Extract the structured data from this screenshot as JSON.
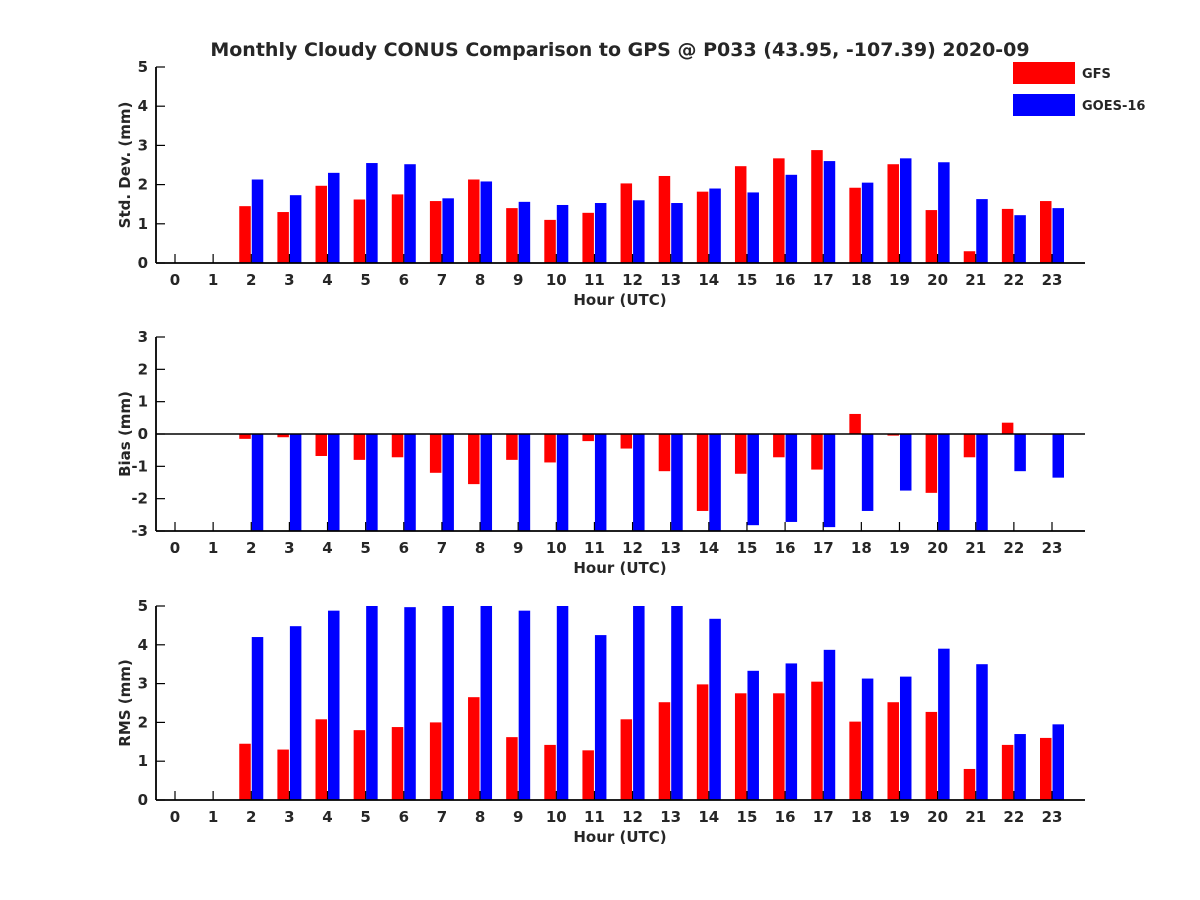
{
  "chart_data": {
    "type": "bar",
    "title": "Monthly Cloudy CONUS Comparison to GPS @ P033 (43.95, -107.39) 2020-09",
    "legend": {
      "placement": "top-right",
      "entries": [
        {
          "name": "GFS",
          "color": "#ff0000"
        },
        {
          "name": "GOES-16",
          "color": "#0000ff"
        }
      ]
    },
    "categories": [
      "0",
      "1",
      "2",
      "3",
      "4",
      "5",
      "6",
      "7",
      "8",
      "9",
      "10",
      "11",
      "12",
      "13",
      "14",
      "15",
      "16",
      "17",
      "18",
      "19",
      "20",
      "21",
      "22",
      "23"
    ],
    "panels": [
      {
        "id": "std",
        "ylabel": "Std. Dev. (mm)",
        "xlabel": "Hour (UTC)",
        "ylim": [
          0,
          5
        ],
        "yticks": [
          "0",
          "1",
          "2",
          "3",
          "4",
          "5"
        ],
        "series": [
          {
            "name": "GFS",
            "values": [
              null,
              null,
              1.45,
              1.3,
              1.97,
              1.62,
              1.75,
              1.58,
              2.13,
              1.4,
              1.1,
              1.28,
              2.03,
              2.22,
              1.82,
              2.47,
              2.67,
              2.88,
              1.92,
              2.52,
              1.35,
              0.3,
              1.38,
              1.58
            ]
          },
          {
            "name": "GOES-16",
            "values": [
              null,
              null,
              2.13,
              1.73,
              2.3,
              2.55,
              2.52,
              1.65,
              2.08,
              1.56,
              1.48,
              1.53,
              1.6,
              1.53,
              1.9,
              1.8,
              2.25,
              2.6,
              2.05,
              2.67,
              2.57,
              1.63,
              1.22,
              1.4
            ]
          }
        ]
      },
      {
        "id": "bias",
        "ylabel": "Bias (mm)",
        "xlabel": "Hour (UTC)",
        "ylim": [
          -3,
          3
        ],
        "yticks": [
          "-3",
          "-2",
          "-1",
          "0",
          "1",
          "2",
          "3"
        ],
        "series": [
          {
            "name": "GFS",
            "values": [
              null,
              null,
              -0.15,
              -0.1,
              -0.68,
              -0.8,
              -0.72,
              -1.2,
              -1.55,
              -0.8,
              -0.88,
              -0.22,
              -0.45,
              -1.15,
              -2.38,
              -1.23,
              -0.72,
              -1.1,
              0.62,
              -0.05,
              -1.82,
              -0.72,
              0.35,
              0.0
            ]
          },
          {
            "name": "GOES-16",
            "values": [
              null,
              null,
              -3.0,
              -3.0,
              -3.0,
              -3.0,
              -3.0,
              -3.0,
              -3.0,
              -3.0,
              -3.0,
              -3.0,
              -3.0,
              -3.0,
              -3.0,
              -2.82,
              -2.72,
              -2.88,
              -2.38,
              -1.75,
              -2.98,
              -3.0,
              -1.15,
              -1.35
            ]
          }
        ]
      },
      {
        "id": "rms",
        "ylabel": "RMS (mm)",
        "xlabel": "Hour (UTC)",
        "ylim": [
          0,
          5
        ],
        "yticks": [
          "0",
          "1",
          "2",
          "3",
          "4",
          "5"
        ],
        "series": [
          {
            "name": "GFS",
            "values": [
              null,
              null,
              1.45,
              1.3,
              2.08,
              1.8,
              1.88,
              2.0,
              2.65,
              1.62,
              1.42,
              1.28,
              2.08,
              2.52,
              2.98,
              2.75,
              2.75,
              3.05,
              2.02,
              2.52,
              2.27,
              0.8,
              1.42,
              1.6
            ]
          },
          {
            "name": "GOES-16",
            "values": [
              null,
              null,
              4.2,
              4.48,
              4.88,
              5.0,
              4.97,
              5.0,
              5.0,
              4.88,
              5.0,
              4.25,
              5.0,
              5.0,
              4.67,
              3.33,
              3.52,
              3.87,
              3.13,
              3.18,
              3.9,
              3.5,
              1.7,
              1.95
            ]
          }
        ]
      }
    ]
  }
}
